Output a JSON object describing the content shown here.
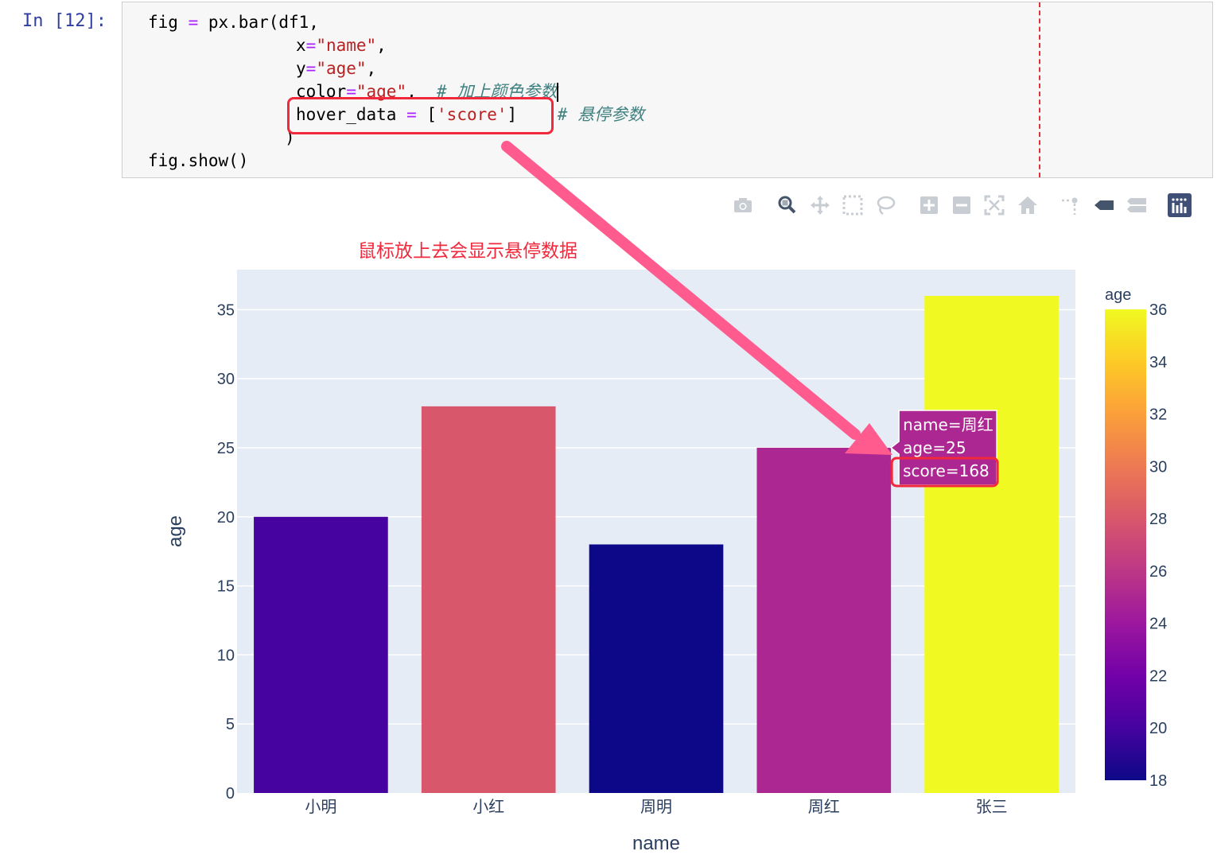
{
  "cell": {
    "prompt": "In [12]:",
    "code": {
      "l1_a": "fig ",
      "l1_op": "=",
      "l1_b": " px.bar(df1,",
      "l2_a": "x",
      "l2_op": "=",
      "l2_str": "\"name\"",
      "l2_b": ",",
      "l3_a": "y",
      "l3_op": "=",
      "l3_str": "\"age\"",
      "l3_b": ",",
      "l4_a": "color",
      "l4_op": "=",
      "l4_str": "\"age\"",
      "l4_b": ",  ",
      "l4_cmt": "# 加上颜色参数",
      "l5_a": "hover_data ",
      "l5_op": "=",
      "l5_b": " [",
      "l5_str": "'score'",
      "l5_c": "]",
      "l5_cmt": "# 悬停参数",
      "l6": ")",
      "l7": "fig.show()"
    }
  },
  "modebar": {
    "icons": [
      "camera-icon",
      "zoom-icon",
      "pan-icon",
      "box-select-icon",
      "lasso-select-icon",
      "zoom-in-icon",
      "zoom-out-icon",
      "autoscale-icon",
      "reset-axes-icon",
      "spike-lines-icon",
      "hover-closest-icon",
      "hover-compare-icon",
      "plotly-logo-icon"
    ]
  },
  "annotation": {
    "text": "鼠标放上去会显示悬停数据",
    "color": "#f2283c"
  },
  "chart_data": {
    "type": "bar",
    "categories": [
      "小明",
      "小红",
      "周明",
      "周红",
      "张三"
    ],
    "values": [
      20,
      28,
      18,
      25,
      36
    ],
    "xlabel": "name",
    "ylabel": "age",
    "ylim": [
      0,
      37.9
    ],
    "yticks": [
      0,
      5,
      10,
      15,
      20,
      25,
      30,
      35
    ],
    "grid": true,
    "plot_bgcolor": "#e5ecf6",
    "colorbar": {
      "title": "age",
      "range": [
        18,
        36
      ],
      "ticks": [
        18,
        20,
        22,
        24,
        26,
        28,
        30,
        32,
        34,
        36
      ],
      "colorscale": [
        "#0d0887",
        "#46039f",
        "#7201a8",
        "#9c179e",
        "#bd3786",
        "#d8576b",
        "#ed7953",
        "#fb9f3a",
        "#fdca26",
        "#f0f921"
      ]
    },
    "hover": {
      "category": "周红",
      "lines": [
        "name=周红",
        "age=25",
        "score=168"
      ]
    }
  }
}
